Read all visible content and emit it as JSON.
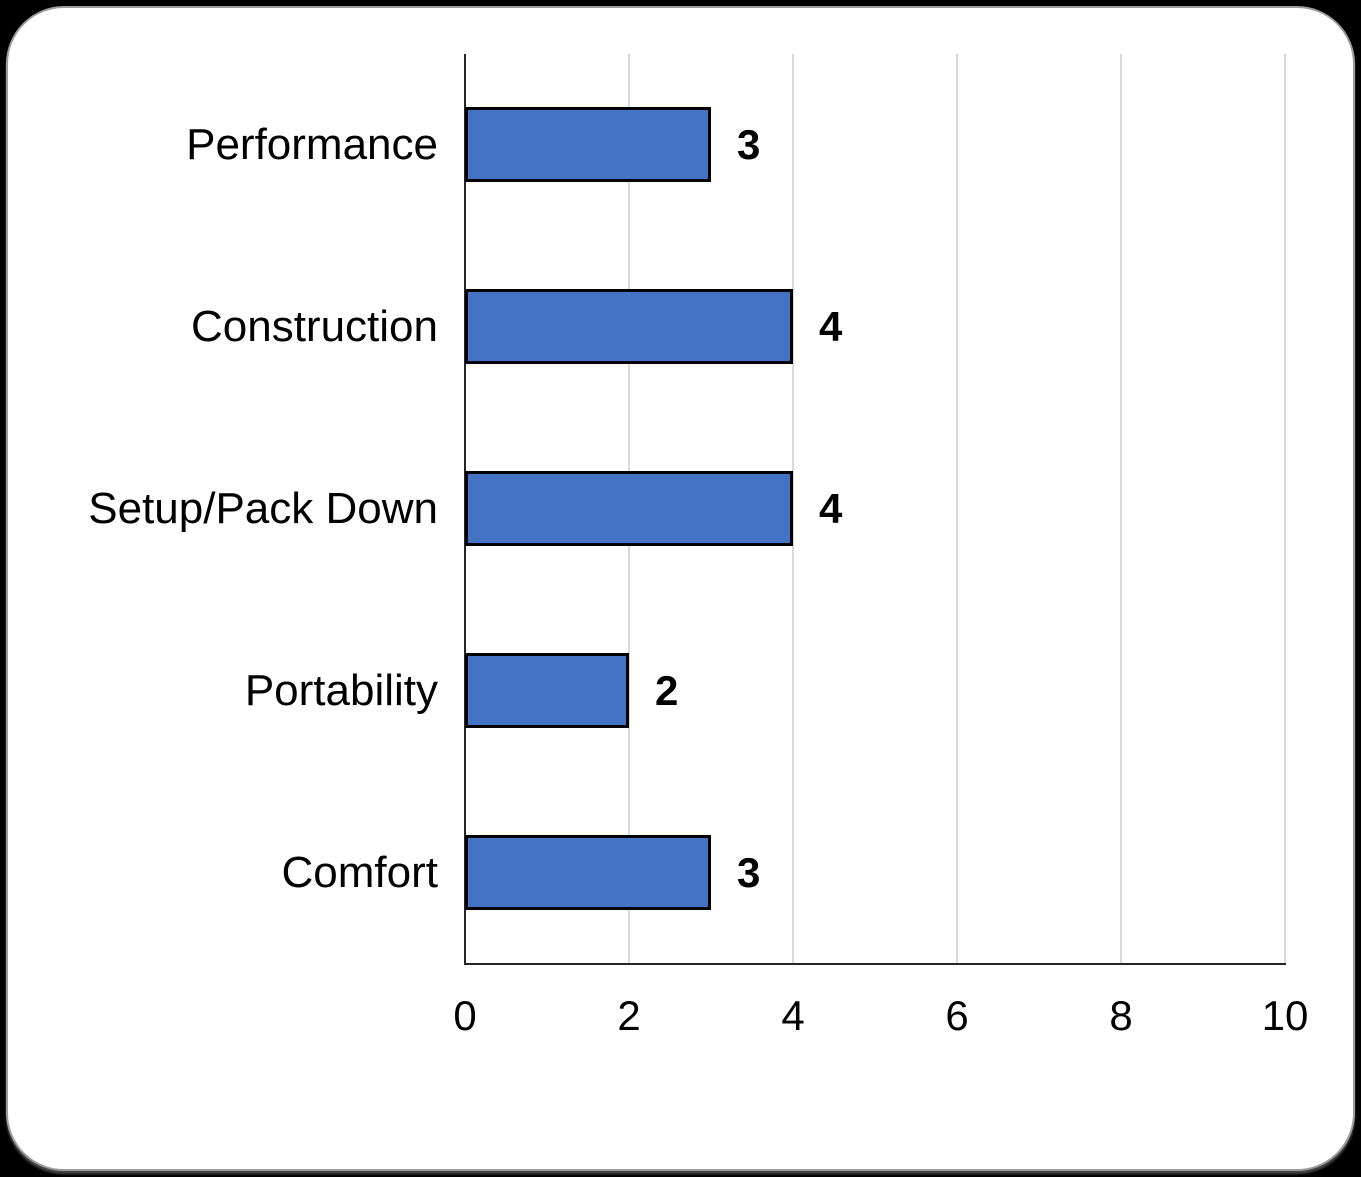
{
  "chart_data": {
    "type": "bar",
    "orientation": "horizontal",
    "title": "",
    "categories": [
      "Performance",
      "Construction",
      "Setup/Pack Down",
      "Portability",
      "Comfort"
    ],
    "values": [
      3,
      4,
      4,
      2,
      3
    ],
    "data_labels": [
      "3",
      "4",
      "4",
      "2",
      "3"
    ],
    "xlabel": "",
    "ylabel": "",
    "xlim": [
      0,
      10
    ],
    "x_ticks": [
      0,
      2,
      4,
      6,
      8,
      10
    ],
    "grid": "vertical-major",
    "legend": "none",
    "colors": {
      "bar_fill": "#4472C4",
      "bar_border": "#000000",
      "gridline": "#D9D9D9",
      "axis_line": "#262626",
      "text": "#000000",
      "card_background": "#FFFFFF",
      "card_border": "#9D9D9D",
      "page_background": "#000000"
    }
  }
}
